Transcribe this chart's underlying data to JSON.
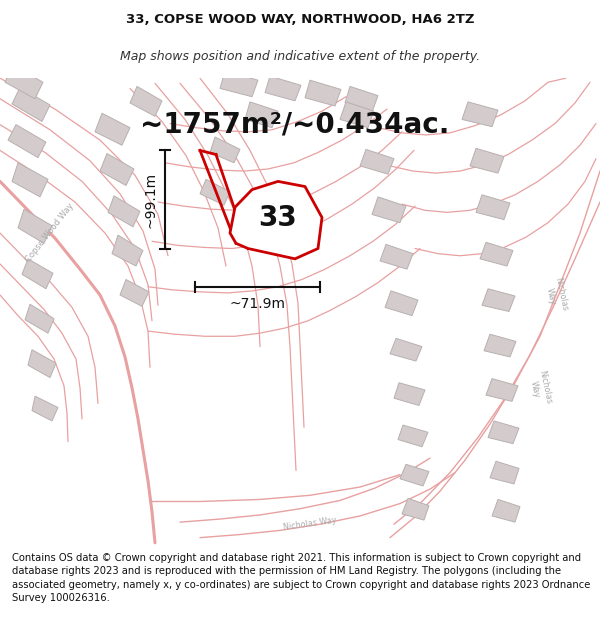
{
  "title_line1": "33, COPSE WOOD WAY, NORTHWOOD, HA6 2TZ",
  "title_line2": "Map shows position and indicative extent of the property.",
  "area_text": "~1757m²/~0.434ac.",
  "label_33": "33",
  "label_height": "~99.1m",
  "label_width": "~71.9m",
  "copyright_text": "Contains OS data © Crown copyright and database right 2021. This information is subject to Crown copyright and database rights 2023 and is reproduced with the permission of HM Land Registry. The polygons (including the associated geometry, namely x, y co-ordinates) are subject to Crown copyright and database rights 2023 Ordnance Survey 100026316.",
  "bg_color": "#ffffff",
  "map_bg_color": "#ffffff",
  "road_color": "#e8a0a0",
  "building_color": "#d4cccc",
  "highlight_color": "#cc0000",
  "dim_color": "#111111",
  "title_fontsize": 9.5,
  "area_fontsize": 20,
  "label_fontsize": 20,
  "dim_fontsize": 10,
  "copyright_fontsize": 7.2
}
